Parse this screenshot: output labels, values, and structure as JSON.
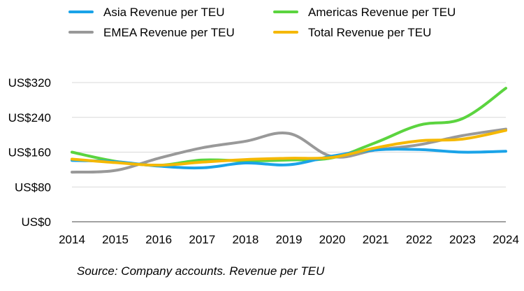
{
  "chart_data": {
    "type": "line",
    "x": [
      "2014",
      "2015",
      "2016",
      "2017",
      "2018",
      "2019",
      "2020",
      "2021",
      "2022",
      "2023",
      "2024"
    ],
    "ylim": [
      0,
      320
    ],
    "yticks": [
      0,
      80,
      160,
      240,
      320
    ],
    "ytick_labels": [
      "US$0",
      "US$80",
      "US$160",
      "US$240",
      "US$320"
    ],
    "grid": true,
    "legend_position": "top",
    "series": [
      {
        "name": "Asia Revenue per TEU",
        "color": "#1aa3e8",
        "values": [
          141,
          138,
          128,
          124,
          135,
          131,
          151,
          165,
          166,
          160,
          162
        ]
      },
      {
        "name": "Americas Revenue per TEU",
        "color": "#5bd43f",
        "values": [
          160,
          139,
          130,
          142,
          140,
          142,
          147,
          182,
          222,
          237,
          307
        ]
      },
      {
        "name": "EMEA Revenue per TEU",
        "color": "#999999",
        "values": [
          114,
          118,
          146,
          170,
          185,
          203,
          150,
          165,
          177,
          198,
          213
        ]
      },
      {
        "name": "Total Revenue per TEU",
        "color": "#f5b800",
        "values": [
          144,
          136,
          130,
          137,
          143,
          146,
          148,
          170,
          186,
          190,
          210
        ]
      }
    ]
  },
  "source": "Source: Company accounts. Revenue per TEU"
}
